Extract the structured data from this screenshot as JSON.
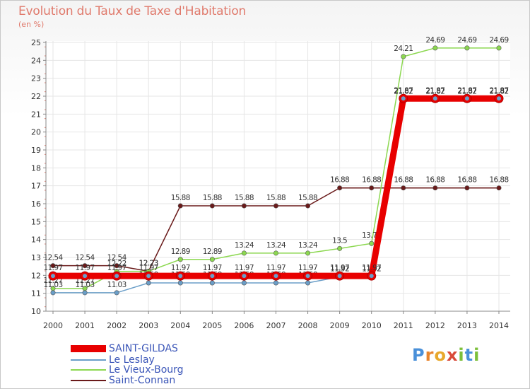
{
  "title": "Evolution du Taux de Taxe d'Habitation",
  "unit_label": "(en %)",
  "logo_text": "Proxiti",
  "chart_data": {
    "type": "line",
    "title": "Evolution du Taux de Taxe d'Habitation",
    "ylabel": "(en %)",
    "xlabel": "",
    "x": [
      "2000",
      "2001",
      "2002",
      "2003",
      "2004",
      "2005",
      "2006",
      "2007",
      "2008",
      "2009",
      "2010",
      "2011",
      "2012",
      "2013",
      "2014"
    ],
    "yticks": [
      "10",
      "11",
      "12",
      "13",
      "14",
      "15",
      "16",
      "17",
      "18",
      "19",
      "20",
      "21",
      "22",
      "23",
      "24",
      "25"
    ],
    "ylim": [
      10,
      25
    ],
    "grid": true,
    "legend_position": "bottom-left",
    "series": [
      {
        "name": "Saint-Connan",
        "color": "#6a1a1a",
        "values": [
          12.54,
          12.54,
          12.54,
          12.23,
          15.88,
          15.88,
          15.88,
          15.88,
          15.88,
          16.88,
          16.88,
          16.88,
          16.88,
          16.88,
          16.88
        ],
        "labels": [
          "12.54",
          "12.54",
          "12.54",
          "12.23",
          "15.88",
          "15.88",
          "15.88",
          "15.88",
          "15.88",
          "16.88",
          "16.88",
          "16.88",
          "16.88",
          "16.88",
          "16.88"
        ]
      },
      {
        "name": "Le Vieux-Bourg",
        "color": "#8cd850",
        "values": [
          11.27,
          11.27,
          12.22,
          12.23,
          12.89,
          12.89,
          13.24,
          13.24,
          13.24,
          13.5,
          13.78,
          24.21,
          24.69,
          24.69,
          24.69
        ],
        "labels": [
          "11.27",
          "11.27",
          "12.22",
          "12.23",
          "12.89",
          "12.89",
          "13.24",
          "13.24",
          "13.24",
          "13.5",
          "13.78",
          "24.21",
          "24.69",
          "24.69",
          "24.69"
        ]
      },
      {
        "name": "Le Leslay",
        "color": "#6a9ec8",
        "values": [
          11.03,
          11.03,
          11.03,
          11.58,
          11.58,
          11.58,
          11.58,
          11.58,
          11.58,
          11.92,
          11.92,
          21.82,
          21.82,
          21.82,
          21.82
        ],
        "labels": [
          "11.03",
          "11.03",
          "11.03",
          "11.58",
          "11.58",
          "11.58",
          "11.58",
          "11.58",
          "11.58",
          "11.92",
          "11.92",
          "21.82",
          "21.82",
          "21.82",
          "21.82"
        ]
      },
      {
        "name": "SAINT-GILDAS",
        "color": "#e80000",
        "values": [
          11.97,
          11.97,
          11.97,
          11.97,
          11.97,
          11.97,
          11.97,
          11.97,
          11.97,
          11.97,
          11.97,
          21.87,
          21.87,
          21.87,
          21.87
        ],
        "labels": [
          "11.97",
          "11.97",
          "11.97",
          "11.97",
          "11.97",
          "11.97",
          "11.97",
          "11.97",
          "11.97",
          "11.97",
          "11.97",
          "21.87",
          "21.87",
          "21.87",
          "21.87"
        ]
      }
    ],
    "legend": [
      "SAINT-GILDAS",
      "Le Leslay",
      "Le Vieux-Bourg",
      "Saint-Connan"
    ]
  }
}
